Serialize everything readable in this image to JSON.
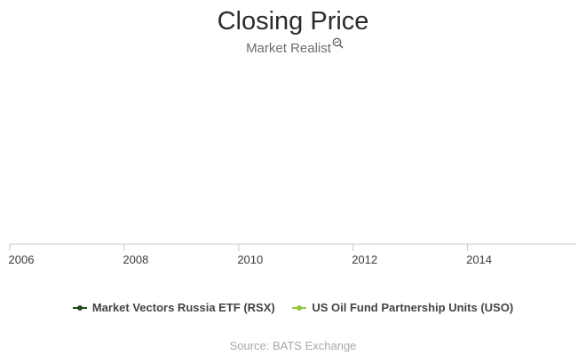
{
  "chart_data": {
    "type": "line",
    "title": "Closing Price",
    "xlabel": "",
    "ylabel": "",
    "x_ticks": [
      "2006",
      "2008",
      "2010",
      "2012",
      "2014"
    ],
    "x_range": [
      2006,
      2015.9
    ],
    "series": [
      {
        "name": "Market Vectors Russia ETF (RSX)",
        "color": "#1f4d1f",
        "values": []
      },
      {
        "name": "US Oil Fund Partnership Units (USO)",
        "color": "#8dc63f",
        "values": []
      }
    ],
    "legend_position": "bottom",
    "grid": false,
    "source": "Source: BATS Exchange"
  },
  "watermark": {
    "text": "Market Realist",
    "icon": "magnifier-chart-icon"
  }
}
